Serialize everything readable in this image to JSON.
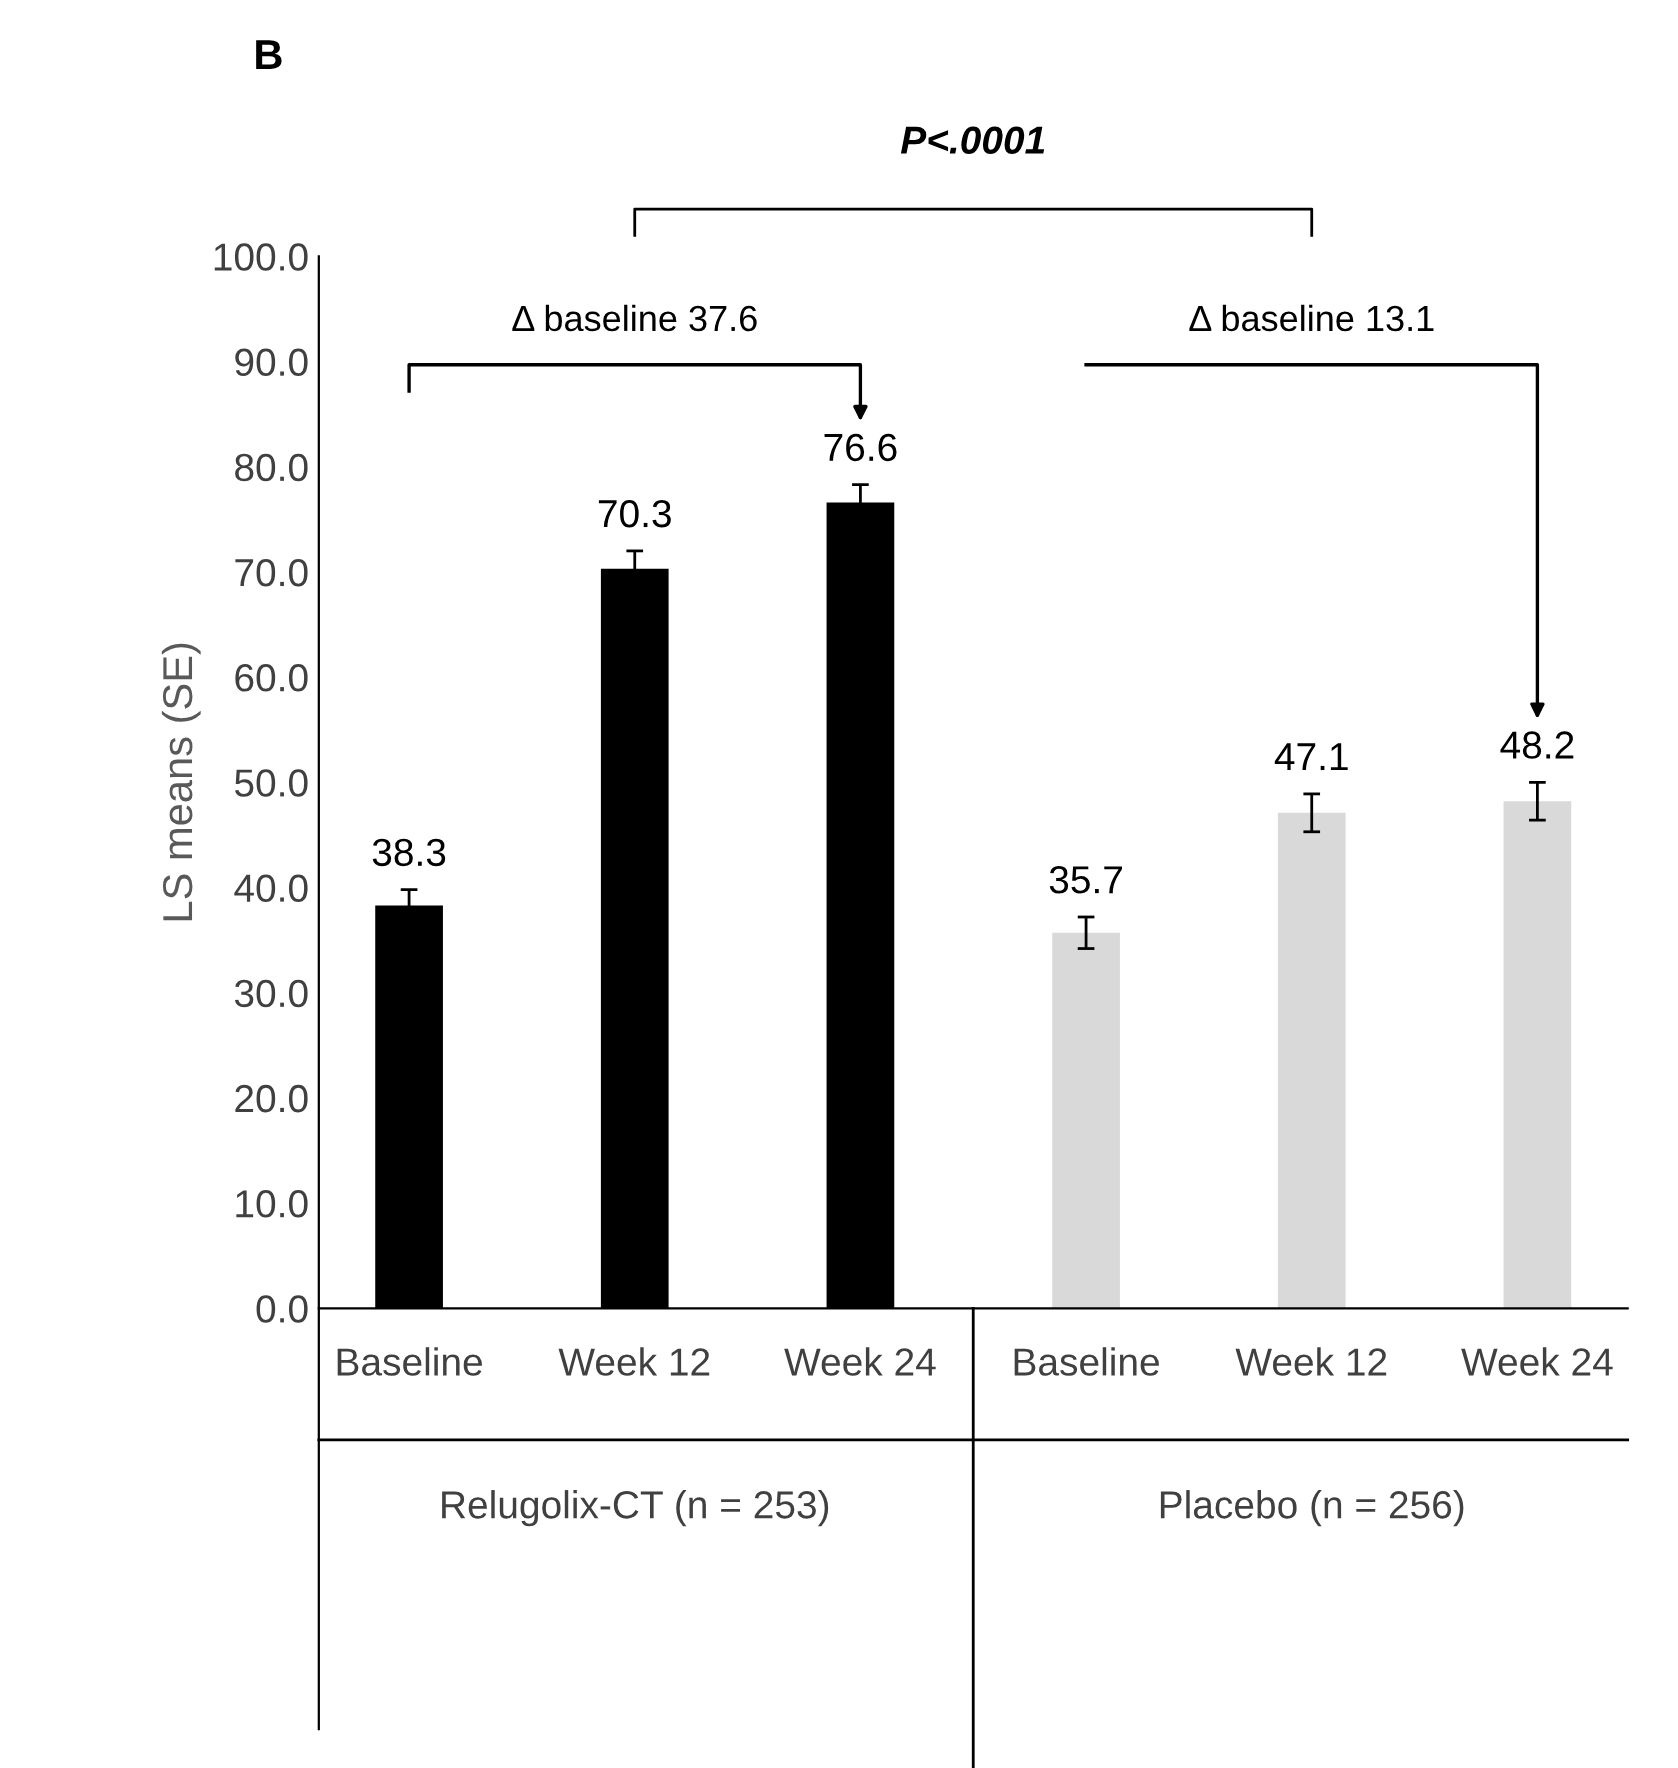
{
  "chart_data": {
    "type": "bar",
    "ylabel": "LS means (SE)",
    "categories": [
      "Baseline",
      "Week 12",
      "Week 24",
      "Baseline",
      "Week 12",
      "Week 24"
    ],
    "values": [
      38.3,
      70.3,
      76.6,
      35.7,
      47.1,
      48.2
    ],
    "errors": [
      1.5,
      1.7,
      1.7,
      1.5,
      1.8,
      1.8
    ],
    "colors": [
      "#000000",
      "#000000",
      "#000000",
      "#d9d9d9",
      "#d9d9d9",
      "#d9d9d9"
    ],
    "ylim": [
      0,
      100
    ],
    "yticks": [
      {
        "value": 0,
        "label": "0.0"
      },
      {
        "value": 10,
        "label": "10.0"
      },
      {
        "value": 20,
        "label": "20.0"
      },
      {
        "value": 30,
        "label": "30.0"
      },
      {
        "value": 40,
        "label": "40.0"
      },
      {
        "value": 50,
        "label": "50.0"
      },
      {
        "value": 60,
        "label": "60.0"
      },
      {
        "value": 70,
        "label": "70.0"
      },
      {
        "value": 80,
        "label": "80.0"
      },
      {
        "value": 90,
        "label": "90.0"
      },
      {
        "value": 100,
        "label": "100.0"
      }
    ],
    "data_labels": true,
    "grid": false,
    "legend": false,
    "annotations": [
      "B",
      "P<.0001",
      "Δ baseline 37.6",
      "Δ baseline 13.1",
      "Relugolix-CT (n = 253)",
      "Placebo (n = 256)"
    ]
  }
}
